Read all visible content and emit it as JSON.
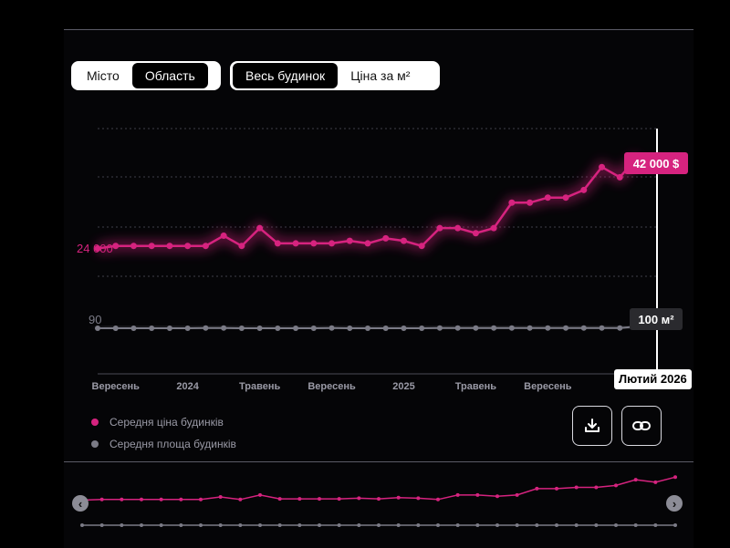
{
  "toggles": {
    "region": [
      {
        "label": "Місто",
        "active": false
      },
      {
        "label": "Область",
        "active": true
      }
    ],
    "mode": [
      {
        "label": "Весь будинок",
        "active": true
      },
      {
        "label": "Ціна за м²",
        "active": false
      }
    ]
  },
  "colors": {
    "price": "#d6237f",
    "area": "#7b7b86",
    "background": "#000000"
  },
  "chart_data": {
    "type": "line",
    "x": [
      "2023-08",
      "2023-09",
      "2023-10",
      "2023-11",
      "2023-12",
      "2024-01",
      "2024-02",
      "2024-03",
      "2024-04",
      "2024-05",
      "2024-06",
      "2024-07",
      "2024-08",
      "2024-09",
      "2024-10",
      "2024-11",
      "2024-12",
      "2025-01",
      "2025-02",
      "2025-03",
      "2025-04",
      "2025-05",
      "2025-06",
      "2025-07",
      "2025-08",
      "2025-09",
      "2025-10",
      "2025-11",
      "2025-12",
      "2026-01",
      "2026-02"
    ],
    "xtick_labels": [
      "Вересень",
      "2024",
      "Травень",
      "Вересень",
      "2025",
      "Травень",
      "Вересень"
    ],
    "series": [
      {
        "name": "Середня ціна будинків",
        "axis": "price",
        "values": [
          24000,
          24500,
          24500,
          24500,
          24500,
          24500,
          24500,
          26500,
          24500,
          28000,
          25000,
          25000,
          25000,
          25000,
          25500,
          25000,
          26000,
          25500,
          24500,
          28000,
          28000,
          27000,
          28000,
          33000,
          33000,
          34000,
          34000,
          35500,
          40000,
          38000,
          42000
        ]
      },
      {
        "name": "Середня площа будинків",
        "axis": "area",
        "values": [
          90,
          90,
          90,
          90,
          90,
          90,
          91,
          91,
          90,
          90,
          90,
          90,
          90,
          91,
          90,
          90,
          90,
          90,
          90,
          91,
          91,
          91,
          91,
          91,
          91,
          91,
          91,
          91,
          91,
          91,
          100
        ]
      }
    ],
    "y_labels": {
      "price_start": "24 000",
      "area_start": "90"
    },
    "end_badges": {
      "price": "42 000 $",
      "area": "100 м²"
    },
    "current_date_label": "Лютий 2026",
    "grid": true,
    "legend_position": "bottom-left"
  }
}
